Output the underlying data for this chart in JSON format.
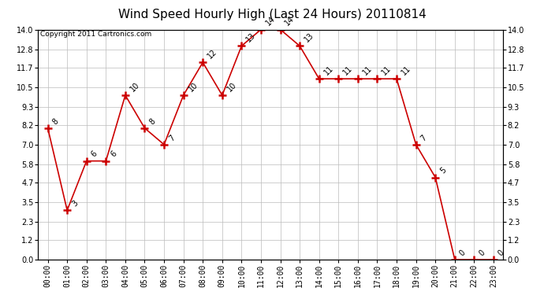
{
  "title": "Wind Speed Hourly High (Last 24 Hours) 20110814",
  "copyright": "Copyright 2011 Cartronics.com",
  "hours": [
    "00:00",
    "01:00",
    "02:00",
    "03:00",
    "04:00",
    "05:00",
    "06:00",
    "07:00",
    "08:00",
    "09:00",
    "10:00",
    "11:00",
    "12:00",
    "13:00",
    "14:00",
    "15:00",
    "16:00",
    "17:00",
    "18:00",
    "19:00",
    "20:00",
    "21:00",
    "22:00",
    "23:00"
  ],
  "values": [
    8,
    3,
    6,
    6,
    10,
    8,
    7,
    10,
    12,
    10,
    13,
    14,
    14,
    13,
    11,
    11,
    11,
    11,
    11,
    7,
    5,
    0,
    0,
    0
  ],
  "line_color": "#cc0000",
  "marker": "+",
  "marker_size": 7,
  "marker_color": "#cc0000",
  "ylim": [
    0,
    14.0
  ],
  "yticks": [
    0.0,
    1.2,
    2.3,
    3.5,
    4.7,
    5.8,
    7.0,
    8.2,
    9.3,
    10.5,
    11.7,
    12.8,
    14.0
  ],
  "background_color": "#ffffff",
  "grid_color": "#bbbbbb",
  "title_fontsize": 11,
  "label_fontsize": 7,
  "annotation_fontsize": 7,
  "border_color": "#000000"
}
